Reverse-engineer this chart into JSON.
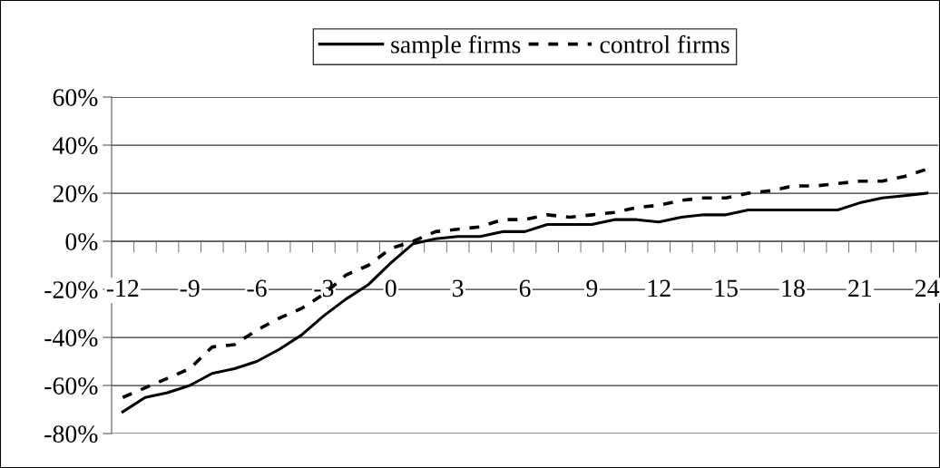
{
  "chart_data": {
    "type": "line",
    "x": [
      -12,
      -11,
      -10,
      -9,
      -8,
      -7,
      -6,
      -5,
      -4,
      -3,
      -2,
      -1,
      0,
      1,
      2,
      3,
      4,
      5,
      6,
      7,
      8,
      9,
      10,
      11,
      12,
      13,
      14,
      15,
      16,
      17,
      18,
      19,
      20,
      21,
      22,
      23,
      24
    ],
    "series": [
      {
        "name": "sample firms",
        "color": "#000000",
        "line_style": "solid",
        "values": [
          -71,
          -65,
          -63,
          -60,
          -55,
          -53,
          -50,
          -45,
          -39,
          -31,
          -24,
          -18,
          -9,
          -1,
          1,
          2,
          2,
          4,
          4,
          7,
          7,
          7,
          9,
          9,
          8,
          10,
          11,
          11,
          13,
          13,
          13,
          13,
          13,
          16,
          18,
          19,
          20
        ]
      },
      {
        "name": "control firms",
        "color": "#000000",
        "line_style": "dashed",
        "values": [
          -65,
          -61,
          -57,
          -53,
          -44,
          -43,
          -37,
          -32,
          -28,
          -22,
          -14,
          -10,
          -3,
          0,
          4,
          5,
          6,
          9,
          9,
          11,
          10,
          11,
          12,
          14,
          15,
          17,
          18,
          18,
          20,
          21,
          23,
          23,
          24,
          25,
          25,
          27,
          30
        ]
      }
    ],
    "xlim": [
      -12.5,
      24.5
    ],
    "xticks": [
      -12,
      -9,
      -6,
      -3,
      0,
      3,
      6,
      9,
      12,
      15,
      18,
      21,
      24,
      {
        "value": -11.5,
        "label": null
      },
      {
        "value": -10.5,
        "label": null
      },
      {
        "value": -9.5,
        "label": null
      },
      {
        "value": -8.5,
        "label": null
      },
      {
        "value": -7.5,
        "label": null
      },
      {
        "value": -6.5,
        "label": null
      },
      {
        "value": -5.5,
        "label": null
      },
      {
        "value": -4.5,
        "label": null
      },
      {
        "value": -3.5,
        "label": null
      },
      {
        "value": -2.5,
        "label": null
      },
      {
        "value": -1.5,
        "label": null
      },
      {
        "value": -0.5,
        "label": null
      },
      {
        "value": 0.5,
        "label": null
      },
      {
        "value": 1.5,
        "label": null
      },
      {
        "value": 2.5,
        "label": null
      },
      {
        "value": 3.5,
        "label": null
      },
      {
        "value": 4.5,
        "label": null
      },
      {
        "value": 5.5,
        "label": null
      },
      {
        "value": 6.5,
        "label": null
      },
      {
        "value": 7.5,
        "label": null
      },
      {
        "value": 8.5,
        "label": null
      },
      {
        "value": 9.5,
        "label": null
      },
      {
        "value": 10.5,
        "label": null
      },
      {
        "value": 11.5,
        "label": null
      },
      {
        "value": 12.5,
        "label": null
      },
      {
        "value": 13.5,
        "label": null
      },
      {
        "value": 14.5,
        "label": null
      },
      {
        "value": 15.5,
        "label": null
      },
      {
        "value": 16.5,
        "label": null
      },
      {
        "value": 17.5,
        "label": null
      },
      {
        "value": 18.5,
        "label": null
      },
      {
        "value": 19.5,
        "label": null
      },
      {
        "value": 20.5,
        "label": null
      },
      {
        "value": 21.5,
        "label": null
      },
      {
        "value": 22.5,
        "label": null
      },
      {
        "value": 23.5,
        "label": null
      }
    ],
    "ylim": [
      -80,
      60
    ],
    "yticks": [
      {
        "value": -80,
        "label": "-80%"
      },
      {
        "value": -60,
        "label": "-60%"
      },
      {
        "value": -40,
        "label": "-40%"
      },
      {
        "value": -20,
        "label": "-20%"
      },
      {
        "value": 0,
        "label": "0%"
      },
      {
        "value": 20,
        "label": "20%"
      },
      {
        "value": 40,
        "label": "40%"
      },
      {
        "value": 60,
        "label": "60%"
      }
    ],
    "grid": "y",
    "legend": "top",
    "marker": "none"
  }
}
